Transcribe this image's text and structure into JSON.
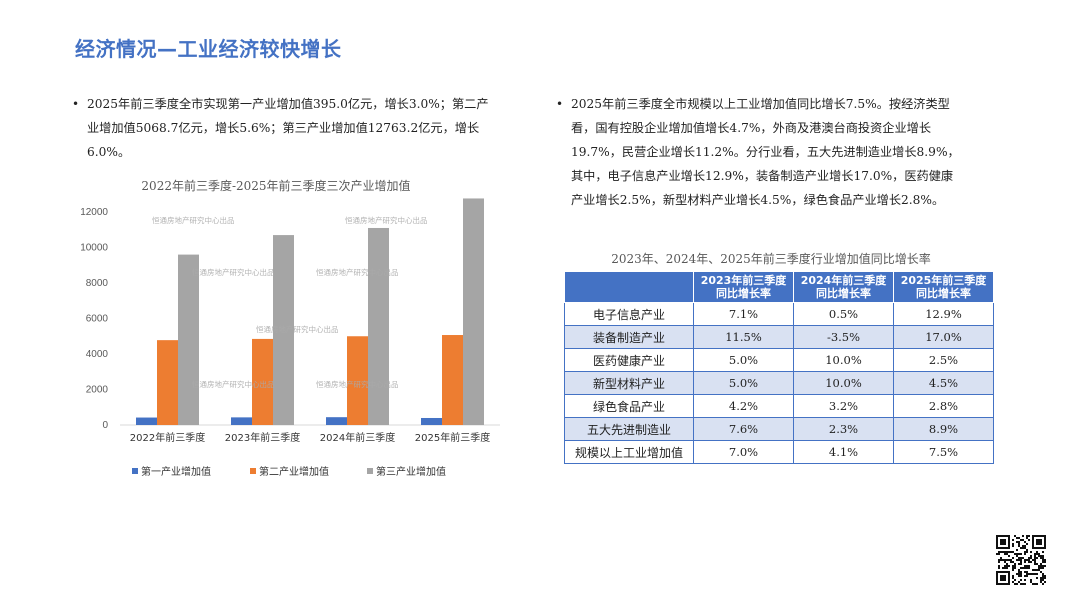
{
  "page": {
    "title": "经济情况—工业经济较快增长"
  },
  "left_text": "2025年前三季度全市实现第一产业增加值395.0亿元，增长3.0%；第二产业增加值5068.7亿元，增长5.6%；第三产业增加值12763.2亿元，增长6.0%。",
  "right_text": "2025年前三季度全市规模以上工业增加值同比增长7.5%。按经济类型看，国有控股企业增加值增长4.7%，外商及港澳台商投资企业增长19.7%，民营企业增长11.2%。分行业看，五大先进制造业增长8.9%，其中，电子信息产业增长12.9%，装备制造产业增长17.0%，医药健康产业增长2.5%，新型材料产业增长4.5%，绿色食品产业增长2.8%。",
  "chart_data": {
    "type": "bar",
    "title": "2022年前三季度-2025年前三季度三次产业增加值",
    "categories": [
      "2022年前三季度",
      "2023年前三季度",
      "2024年前三季度",
      "2025年前三季度"
    ],
    "series": [
      {
        "name": "第一产业增加值",
        "values": [
          420,
          430,
          440,
          395
        ],
        "color": "#4472c4"
      },
      {
        "name": "第二产业增加值",
        "values": [
          4780,
          4850,
          5000,
          5069
        ],
        "color": "#ed7d31"
      },
      {
        "name": "第三产业增加值",
        "values": [
          9600,
          10700,
          11100,
          12763
        ],
        "color": "#a5a5a5"
      }
    ],
    "yticks": [
      "0",
      "2000",
      "4000",
      "6000",
      "8000",
      "10000",
      "12000"
    ],
    "ylim": [
      0,
      12000
    ],
    "grid": false,
    "legend": "bottom"
  },
  "table": {
    "title": "2023年、2024年、2025年前三季度行业增加值同比增长率",
    "headers": [
      "",
      "2023年前三季度\n同比增长率",
      "2024年前三季度\n同比增长率",
      "2025年前三季度\n同比增长率"
    ],
    "rows": [
      [
        "电子信息产业",
        "7.1%",
        "0.5%",
        "12.9%"
      ],
      [
        "装备制造产业",
        "11.5%",
        "-3.5%",
        "17.0%"
      ],
      [
        "医药健康产业",
        "5.0%",
        "10.0%",
        "2.5%"
      ],
      [
        "新型材料产业",
        "5.0%",
        "10.0%",
        "4.5%"
      ],
      [
        "绿色食品产业",
        "4.2%",
        "3.2%",
        "2.8%"
      ],
      [
        "五大先进制造业",
        "7.6%",
        "2.3%",
        "8.9%"
      ],
      [
        "规模以上工业增加值",
        "7.0%",
        "4.1%",
        "7.5%"
      ]
    ]
  },
  "watermark": "恒通房地产研究中心出品",
  "colors": {
    "accent": "#4472c4",
    "table_alt_row": "#d9e1f2"
  }
}
